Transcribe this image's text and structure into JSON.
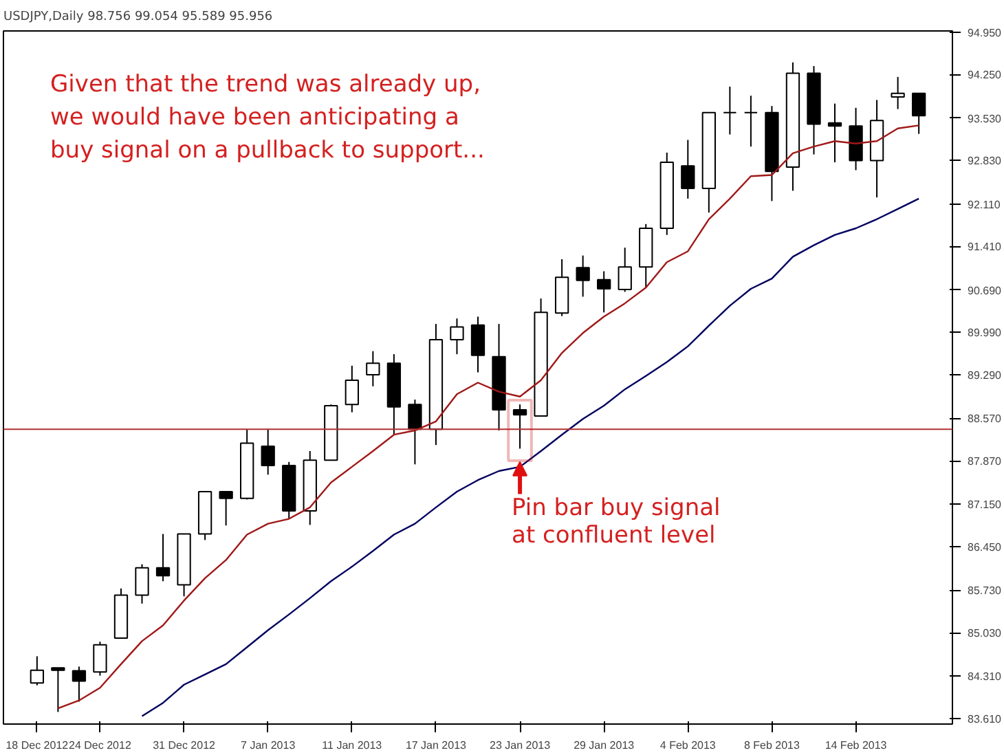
{
  "chart_data": {
    "type": "candlestick",
    "title": "USDJPY,Daily  98.756 99.054 95.589 95.956",
    "color": "#000000",
    "categories": [
      "18 Dec 2012",
      null,
      null,
      "24 Dec 2012",
      null,
      null,
      null,
      "31 Dec 2012",
      null,
      null,
      null,
      "7 Jan 2013",
      null,
      null,
      null,
      "11 Jan 2013",
      null,
      null,
      null,
      "17 Jan 2013",
      null,
      null,
      null,
      "23 Jan 2013",
      null,
      null,
      null,
      "29 Jan 2013",
      null,
      null,
      null,
      "4 Feb 2013",
      null,
      null,
      null,
      "8 Feb 2013",
      null,
      null,
      null,
      "14 Feb 2013",
      null,
      null,
      null
    ],
    "ohlc": [
      [
        84.2,
        84.64,
        84.16,
        84.41
      ],
      [
        84.45,
        84.45,
        83.72,
        84.41
      ],
      [
        84.4,
        84.47,
        83.89,
        84.23
      ],
      [
        84.38,
        84.88,
        84.32,
        84.83
      ],
      [
        84.94,
        85.76,
        84.93,
        85.65
      ],
      [
        85.65,
        86.16,
        85.51,
        86.1
      ],
      [
        86.1,
        86.66,
        85.88,
        85.97
      ],
      [
        85.82,
        86.66,
        85.63,
        86.66
      ],
      [
        86.66,
        87.36,
        86.56,
        87.36
      ],
      [
        87.36,
        87.37,
        86.8,
        87.25
      ],
      [
        87.25,
        88.39,
        87.23,
        88.16
      ],
      [
        88.11,
        88.39,
        87.64,
        87.79
      ],
      [
        87.79,
        87.85,
        86.91,
        87.04
      ],
      [
        87.04,
        88.03,
        86.81,
        87.88
      ],
      [
        87.88,
        88.8,
        87.87,
        88.78
      ],
      [
        88.8,
        89.44,
        88.67,
        89.2
      ],
      [
        89.29,
        89.68,
        89.1,
        89.48
      ],
      [
        89.48,
        89.63,
        88.31,
        88.76
      ],
      [
        88.8,
        88.88,
        87.81,
        88.39
      ],
      [
        88.39,
        90.13,
        88.13,
        89.87
      ],
      [
        89.87,
        90.22,
        89.63,
        90.08
      ],
      [
        90.11,
        90.25,
        89.33,
        89.61
      ],
      [
        89.59,
        90.13,
        88.37,
        88.71
      ],
      [
        88.71,
        88.8,
        88.07,
        88.63
      ],
      [
        88.61,
        90.55,
        88.61,
        90.32
      ],
      [
        90.31,
        91.2,
        90.26,
        90.9
      ],
      [
        91.06,
        91.26,
        90.58,
        90.85
      ],
      [
        90.86,
        91.0,
        90.32,
        90.71
      ],
      [
        90.7,
        91.39,
        90.66,
        91.07
      ],
      [
        91.07,
        91.78,
        90.73,
        91.71
      ],
      [
        91.71,
        92.96,
        91.6,
        92.8
      ],
      [
        92.74,
        93.17,
        92.2,
        92.37
      ],
      [
        92.37,
        93.63,
        91.97,
        93.62
      ],
      [
        93.62,
        94.05,
        93.26,
        93.62
      ],
      [
        93.62,
        93.9,
        93.06,
        93.62
      ],
      [
        93.62,
        93.73,
        92.16,
        92.65
      ],
      [
        92.72,
        94.45,
        92.33,
        94.27
      ],
      [
        94.27,
        94.39,
        92.93,
        93.43
      ],
      [
        93.45,
        93.77,
        92.8,
        93.4
      ],
      [
        93.4,
        93.7,
        92.67,
        92.83
      ],
      [
        92.83,
        93.83,
        92.22,
        93.49
      ],
      [
        93.88,
        94.21,
        93.68,
        93.94
      ],
      [
        93.94,
        93.94,
        93.27,
        93.57
      ]
    ],
    "series": [
      {
        "type": "line",
        "color": "#a01818",
        "values": [
          null,
          83.78,
          83.91,
          84.12,
          84.51,
          84.89,
          85.15,
          85.56,
          85.93,
          86.23,
          86.65,
          86.83,
          86.91,
          87.1,
          87.51,
          87.77,
          88.03,
          88.3,
          88.37,
          88.52,
          88.97,
          89.16,
          89.01,
          88.93,
          89.2,
          89.65,
          89.98,
          90.25,
          90.47,
          90.73,
          91.15,
          91.33,
          91.86,
          92.2,
          92.57,
          92.59,
          92.95,
          93.06,
          93.15,
          93.11,
          93.15,
          93.36,
          93.41
        ]
      },
      {
        "type": "line",
        "color": "#000060",
        "values": [
          null,
          null,
          null,
          null,
          null,
          83.65,
          83.87,
          84.17,
          84.34,
          84.51,
          84.79,
          85.07,
          85.33,
          85.6,
          85.88,
          86.12,
          86.38,
          86.65,
          86.83,
          87.1,
          87.36,
          87.55,
          87.7,
          87.77,
          88.03,
          88.3,
          88.56,
          88.78,
          89.05,
          89.27,
          89.5,
          89.76,
          90.1,
          90.43,
          90.71,
          90.88,
          91.24,
          91.43,
          91.6,
          91.71,
          91.86,
          92.03,
          92.2
        ]
      }
    ],
    "ylim": [
      83.52,
      94.97
    ],
    "yticks": [
      {
        "value": 83.61,
        "label": "83.610"
      },
      {
        "value": 84.31,
        "label": "84.310"
      },
      {
        "value": 85.03,
        "label": "85.030"
      },
      {
        "value": 85.73,
        "label": "85.730"
      },
      {
        "value": 86.45,
        "label": "86.450"
      },
      {
        "value": 87.15,
        "label": "87.150"
      },
      {
        "value": 87.87,
        "label": "87.870"
      },
      {
        "value": 88.57,
        "label": "88.570"
      },
      {
        "value": 89.29,
        "label": "89.290"
      },
      {
        "value": 89.99,
        "label": "89.990"
      },
      {
        "value": 90.69,
        "label": "90.690"
      },
      {
        "value": 91.41,
        "label": "91.410"
      },
      {
        "value": 92.11,
        "label": "92.110"
      },
      {
        "value": 92.83,
        "label": "92.830"
      },
      {
        "value": 93.53,
        "label": "93.530"
      },
      {
        "value": 94.25,
        "label": "94.250"
      },
      {
        "value": 94.95,
        "label": "94.950"
      }
    ],
    "ref_lines": [
      {
        "axis": "y",
        "value": 88.39,
        "color": "#b03030"
      }
    ],
    "annotations": [
      "Given that the trend was already up,\nwe would have been anticipating a\nbuy signal on a pullback to support...",
      {
        "text": "Pin bar buy signal\nat confluent level",
        "x": "23 Jan 2013",
        "y": 88.07
      }
    ],
    "grid": false
  }
}
